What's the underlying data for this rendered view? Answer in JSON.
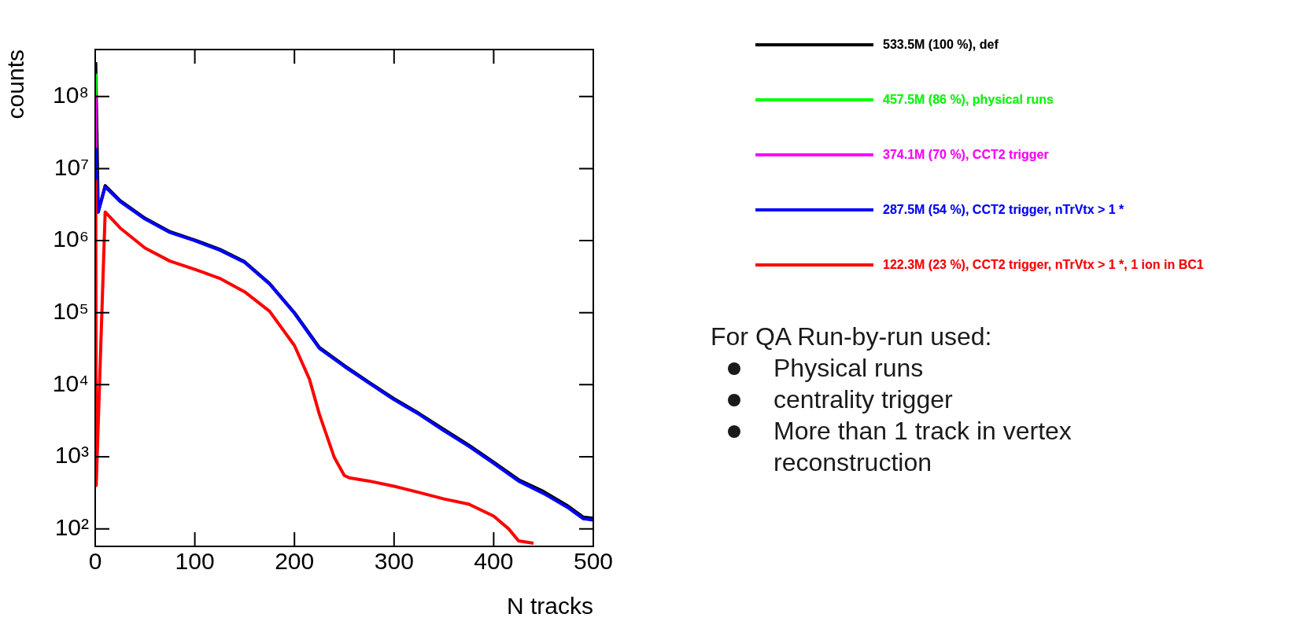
{
  "chart_data": {
    "type": "line",
    "xlabel": "N tracks",
    "ylabel": "counts",
    "log": "y",
    "xlim": [
      0,
      500
    ],
    "xticks": [
      0,
      100,
      200,
      300,
      400,
      500
    ],
    "ylim": [
      57,
      450000000
    ],
    "yticks": [
      {
        "value": 100,
        "label": "10²"
      },
      {
        "value": 1000,
        "label": "10³"
      },
      {
        "value": 10000,
        "label": "10⁴"
      },
      {
        "value": 100000,
        "label": "10⁵"
      },
      {
        "value": 1000000,
        "label": "10⁶"
      },
      {
        "value": 10000000,
        "label": "10⁷"
      },
      {
        "value": 100000000,
        "label": "10⁸"
      }
    ],
    "grid": false,
    "legend": "right",
    "series": [
      {
        "name": "533.5M (100 %), def",
        "color": "#000000",
        "x": [
          0.5,
          3,
          10,
          25,
          50,
          75,
          100,
          125,
          150,
          175,
          200,
          225,
          250,
          275,
          300,
          325,
          350,
          375,
          400,
          425,
          450,
          475,
          490,
          500
        ],
        "values": [
          300000000,
          2500000,
          5800000,
          3600000,
          2050000,
          1330000,
          1020000,
          760000,
          510000,
          255000,
          100000,
          33000,
          18500,
          10800,
          6400,
          4000,
          2400,
          1450,
          840,
          480,
          330,
          205,
          145,
          140
        ]
      },
      {
        "name": "457.5M (86 %), physical runs",
        "color": "#00ff00",
        "x": [
          0.5,
          0.5
        ],
        "values": [
          200000000,
          100000000
        ]
      },
      {
        "name": "374.1M (70 %), CCT2 trigger",
        "color": "#ff00ff",
        "x": [
          0.5,
          0.5
        ],
        "values": [
          100000000,
          20000000
        ]
      },
      {
        "name": "287.5M (54 %), CCT2 trigger, nTrVtx > 1 *",
        "color": "#0000ff",
        "x": [
          0.5,
          3,
          10,
          25,
          50,
          75,
          100,
          125,
          150,
          175,
          200,
          225,
          250,
          275,
          300,
          325,
          350,
          375,
          400,
          425,
          450,
          475,
          490,
          500
        ],
        "values": [
          19000000,
          2500000,
          5600000,
          3500000,
          2000000,
          1300000,
          1000000,
          740000,
          500000,
          250000,
          98000,
          32000,
          18000,
          10500,
          6200,
          3900,
          2300,
          1400,
          810,
          460,
          310,
          195,
          138,
          132
        ]
      },
      {
        "name": "122.3M (23 %), CCT2 trigger, nTrVtx > 1 *, 1 ion in BC1",
        "color": "#ff0000",
        "x": [
          0.5,
          1,
          10,
          25,
          50,
          75,
          100,
          125,
          150,
          175,
          200,
          215,
          225,
          240,
          250,
          255,
          275,
          300,
          325,
          350,
          375,
          400,
          415,
          425,
          440
        ],
        "values": [
          7000000,
          400,
          2500000,
          1500000,
          790000,
          520000,
          400000,
          300000,
          195000,
          105000,
          35000,
          12000,
          3900,
          980,
          550,
          510,
          460,
          390,
          320,
          260,
          220,
          150,
          100,
          68,
          63
        ]
      }
    ],
    "annotations": [
      "For QA Run-by-run used:",
      "Physical runs",
      "centrality trigger",
      "More than 1 track in vertex reconstruction"
    ]
  }
}
